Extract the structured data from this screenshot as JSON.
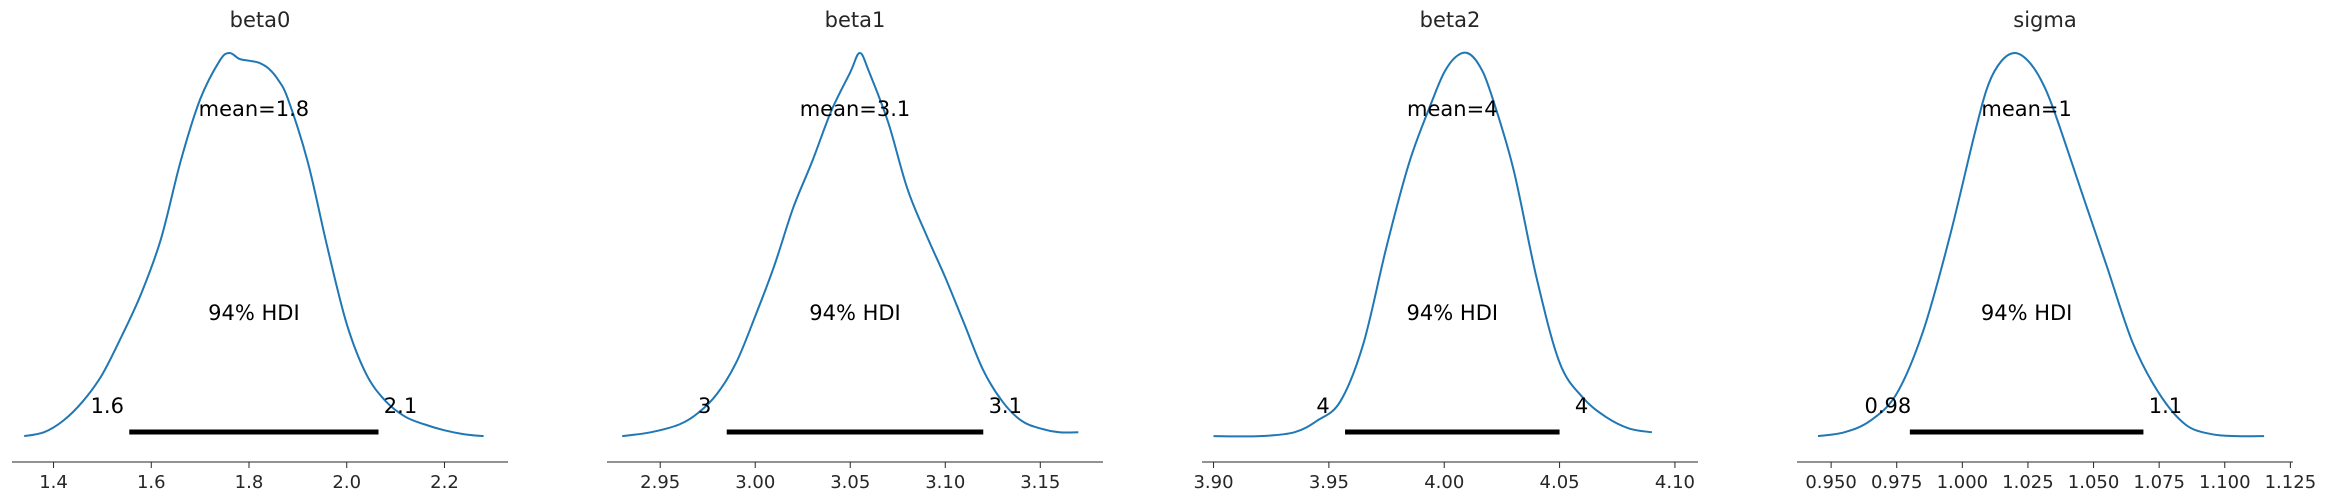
{
  "chart_data": [
    {
      "type": "line",
      "title": "beta0",
      "mean_label": "mean=1.8",
      "hdi_label": "94% HDI",
      "hdi": [
        1.555,
        2.065
      ],
      "hdi_low_label": "1.6",
      "hdi_high_label": "2.1",
      "xlim": [
        1.315,
        2.33
      ],
      "xticks": [
        1.4,
        1.6,
        1.8,
        2.0,
        2.2
      ],
      "xtick_labels": [
        "1.4",
        "1.6",
        "1.8",
        "2.0",
        "2.2"
      ],
      "density_x": [
        1.34,
        1.38,
        1.42,
        1.46,
        1.5,
        1.54,
        1.58,
        1.62,
        1.66,
        1.7,
        1.74,
        1.76,
        1.78,
        1.8,
        1.82,
        1.84,
        1.86,
        1.88,
        1.92,
        1.96,
        2.0,
        2.04,
        2.08,
        2.12,
        2.16,
        2.2,
        2.24,
        2.28
      ],
      "density_y": [
        0.01,
        0.02,
        0.05,
        0.1,
        0.17,
        0.27,
        0.38,
        0.52,
        0.72,
        0.88,
        0.98,
        1.0,
        0.985,
        0.98,
        0.975,
        0.96,
        0.93,
        0.88,
        0.72,
        0.5,
        0.3,
        0.17,
        0.1,
        0.06,
        0.04,
        0.025,
        0.015,
        0.01
      ]
    },
    {
      "type": "line",
      "title": "beta1",
      "mean_label": "mean=3.1",
      "hdi_label": "94% HDI",
      "hdi": [
        2.985,
        3.12
      ],
      "hdi_low_label": "3",
      "hdi_high_label": "3.1",
      "xlim": [
        2.922,
        3.183
      ],
      "xticks": [
        2.95,
        3.0,
        3.05,
        3.1,
        3.15
      ],
      "xtick_labels": [
        "2.95",
        "3.00",
        "3.05",
        "3.10",
        "3.15"
      ],
      "density_x": [
        2.93,
        2.945,
        2.96,
        2.97,
        2.98,
        2.99,
        3.0,
        3.01,
        3.02,
        3.03,
        3.04,
        3.05,
        3.055,
        3.06,
        3.07,
        3.08,
        3.09,
        3.1,
        3.11,
        3.12,
        3.13,
        3.14,
        3.15,
        3.16,
        3.17
      ],
      "density_y": [
        0.01,
        0.02,
        0.04,
        0.07,
        0.12,
        0.2,
        0.32,
        0.45,
        0.6,
        0.72,
        0.85,
        0.95,
        1.0,
        0.95,
        0.82,
        0.65,
        0.53,
        0.42,
        0.3,
        0.18,
        0.1,
        0.05,
        0.03,
        0.02,
        0.02
      ]
    },
    {
      "type": "line",
      "title": "beta2",
      "mean_label": "mean=4",
      "hdi_label": "94% HDI",
      "hdi": [
        3.957,
        4.05
      ],
      "hdi_low_label": "4",
      "hdi_high_label": "4",
      "xlim": [
        3.895,
        4.11
      ],
      "xticks": [
        3.9,
        3.95,
        4.0,
        4.05,
        4.1
      ],
      "xtick_labels": [
        "3.90",
        "3.95",
        "4.00",
        "4.05",
        "4.10"
      ],
      "density_x": [
        3.9,
        3.92,
        3.935,
        3.945,
        3.955,
        3.965,
        3.975,
        3.985,
        3.995,
        4.0,
        4.005,
        4.01,
        4.015,
        4.02,
        4.03,
        4.04,
        4.05,
        4.06,
        4.07,
        4.08,
        4.09
      ],
      "density_y": [
        0.01,
        0.01,
        0.02,
        0.05,
        0.1,
        0.25,
        0.5,
        0.72,
        0.88,
        0.95,
        0.99,
        1.0,
        0.97,
        0.9,
        0.7,
        0.42,
        0.2,
        0.11,
        0.06,
        0.03,
        0.02
      ]
    },
    {
      "type": "line",
      "title": "sigma",
      "mean_label": "mean=1",
      "hdi_label": "94% HDI",
      "hdi": [
        0.98,
        1.069
      ],
      "hdi_low_label": "0.98",
      "hdi_high_label": "1.1",
      "xlim": [
        0.937,
        1.126
      ],
      "xticks": [
        0.95,
        0.975,
        1.0,
        1.025,
        1.05,
        1.075,
        1.1,
        1.125
      ],
      "xtick_labels": [
        "0.950",
        "0.975",
        "1.000",
        "1.025",
        "1.050",
        "1.075",
        "1.100",
        "1.125"
      ],
      "density_x": [
        0.945,
        0.955,
        0.965,
        0.975,
        0.985,
        0.995,
        1.005,
        1.01,
        1.015,
        1.02,
        1.025,
        1.03,
        1.035,
        1.045,
        1.055,
        1.065,
        1.075,
        1.085,
        1.095,
        1.105,
        1.115
      ],
      "density_y": [
        0.01,
        0.02,
        0.05,
        0.12,
        0.28,
        0.52,
        0.8,
        0.92,
        0.98,
        1.0,
        0.98,
        0.93,
        0.85,
        0.65,
        0.45,
        0.25,
        0.12,
        0.04,
        0.015,
        0.01,
        0.01
      ]
    }
  ]
}
